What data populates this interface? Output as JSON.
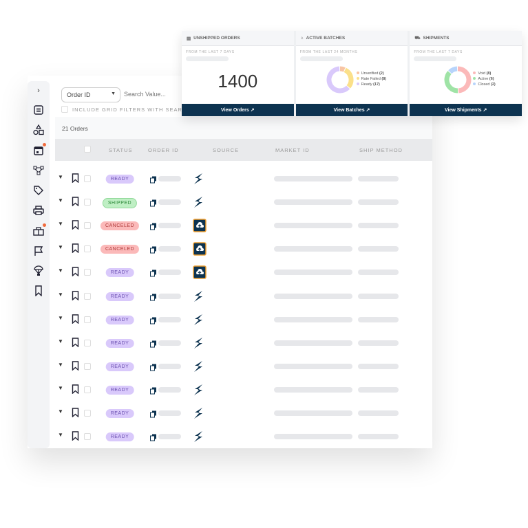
{
  "filter": {
    "field": "Order ID",
    "search_placeholder": "Search Value...",
    "include_label": "INCLUDE GRID FILTERS WITH SEARCH"
  },
  "count_label": "21 Orders",
  "columns": [
    "STATUS",
    "ORDER ID",
    "SOURCE",
    "MARKET ID",
    "SHIP METHOD"
  ],
  "rows": [
    {
      "status": "READY",
      "source": "bolt"
    },
    {
      "status": "SHIPPED",
      "source": "bolt"
    },
    {
      "status": "CANCELED",
      "source": "cloud-upload"
    },
    {
      "status": "CANCELED",
      "source": "cloud-upload"
    },
    {
      "status": "READY",
      "source": "cloud-upload"
    },
    {
      "status": "READY",
      "source": "bolt"
    },
    {
      "status": "READY",
      "source": "bolt"
    },
    {
      "status": "READY",
      "source": "bolt"
    },
    {
      "status": "READY",
      "source": "bolt"
    },
    {
      "status": "READY",
      "source": "bolt"
    },
    {
      "status": "READY",
      "source": "bolt"
    },
    {
      "status": "READY",
      "source": "bolt"
    }
  ],
  "cards": {
    "unshipped": {
      "title": "UNSHIPPED ORDERS",
      "subtitle": "FROM THE LAST 7 DAYS",
      "value": "1400",
      "button": "View Orders"
    },
    "batches": {
      "title": "ACTIVE BATCHES",
      "subtitle": "FROM THE LAST 24 MONTHS",
      "button": "View Batches",
      "legend": [
        {
          "label": "Unverified",
          "count": "(2)",
          "value": 2,
          "color": "#f8c4a4"
        },
        {
          "label": "Rate Failed",
          "count": "(8)",
          "value": 8,
          "color": "#fbe08a"
        },
        {
          "label": "Ready",
          "count": "(17)",
          "value": 17,
          "color": "#d9c9fb"
        }
      ]
    },
    "shipments": {
      "title": "SHIPMENTS",
      "subtitle": "FROM THE LAST 7 DAYS",
      "button": "View Shipments",
      "legend": [
        {
          "label": "Void",
          "count": "(8)",
          "value": 8,
          "color": "#fbb9b9"
        },
        {
          "label": "Active",
          "count": "(6)",
          "value": 6,
          "color": "#9fe3a6"
        },
        {
          "label": "Closed",
          "count": "(2)",
          "value": 2,
          "color": "#b7d4fb"
        }
      ]
    }
  },
  "colors": {
    "navy": "#0d3350",
    "accent_orange": "#f0a030"
  }
}
